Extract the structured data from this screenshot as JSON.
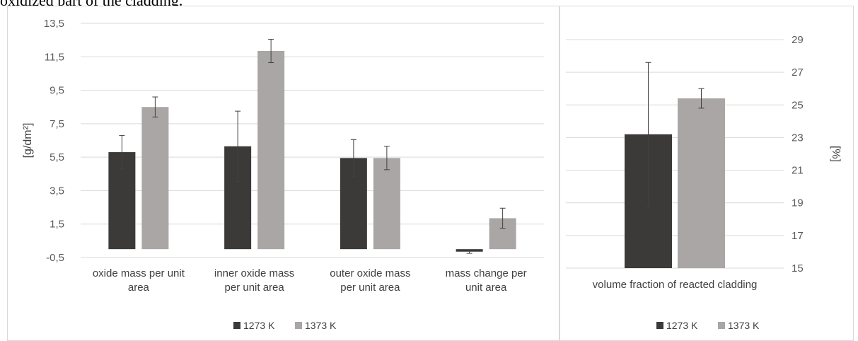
{
  "caption": "oxidized part of the cladding.",
  "colors": {
    "series1": "#3c3a39",
    "series2": "#a9a6a5",
    "grid": "#d9d9d9",
    "error": "#404040"
  },
  "chart_data": [
    {
      "type": "bar",
      "categories": [
        [
          "oxide mass per unit",
          "area"
        ],
        [
          "inner oxide mass",
          "per unit area"
        ],
        [
          "outer oxide mass",
          "per unit area"
        ],
        [
          "mass change per",
          "unit area"
        ]
      ],
      "series": [
        {
          "name": "1273 K",
          "values": [
            5.8,
            6.15,
            5.45,
            -0.15
          ],
          "error": [
            1.0,
            2.1,
            1.1,
            0.1
          ]
        },
        {
          "name": "1373 K",
          "values": [
            8.5,
            11.85,
            5.45,
            1.85
          ],
          "error": [
            0.6,
            0.7,
            0.7,
            0.6
          ]
        }
      ],
      "ylabel": "[g/dm²]",
      "ylim": [
        -0.5,
        13.5
      ],
      "yticks": [
        "13,5",
        "11,5",
        "9,5",
        "7,5",
        "5,5",
        "3,5",
        "1,5",
        "-0,5"
      ],
      "grid": true,
      "legend": "bottom"
    },
    {
      "type": "bar",
      "categories": [
        [
          "volume fraction of reacted cladding"
        ]
      ],
      "series": [
        {
          "name": "1273 K",
          "values": [
            23.2
          ],
          "error": [
            4.4
          ]
        },
        {
          "name": "1373 K",
          "values": [
            25.4
          ],
          "error": [
            0.6
          ]
        }
      ],
      "ylabel": "[%]",
      "ylim": [
        15,
        29
      ],
      "yticks": [
        "29",
        "27",
        "25",
        "23",
        "21",
        "19",
        "17",
        "15"
      ],
      "axis_side": "right",
      "grid": true,
      "legend": "bottom"
    }
  ]
}
